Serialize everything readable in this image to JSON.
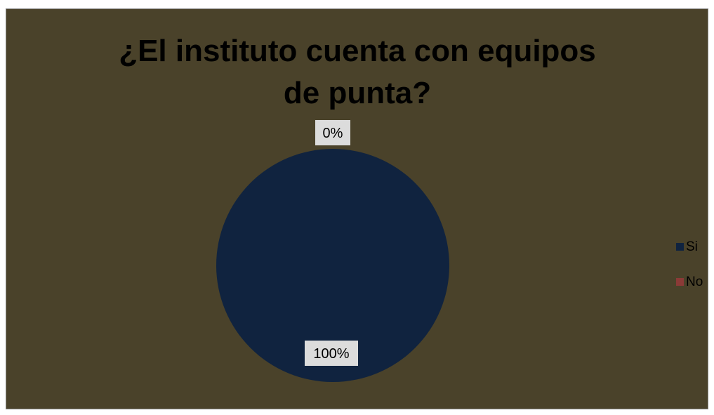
{
  "colors": {
    "background": "#4a422a",
    "border": "#8c8c8c",
    "label_box": "#dcdcdc"
  },
  "chart_data": {
    "type": "pie",
    "title": "¿El instituto cuenta con equipos de punta?",
    "categories": [
      "Si",
      "No"
    ],
    "values": [
      100,
      0
    ],
    "colors": [
      "#10233f",
      "#8b3a37"
    ],
    "data_labels": [
      "100%",
      "0%"
    ],
    "legend": {
      "position": "right",
      "entries": [
        "Si",
        "No"
      ]
    }
  }
}
